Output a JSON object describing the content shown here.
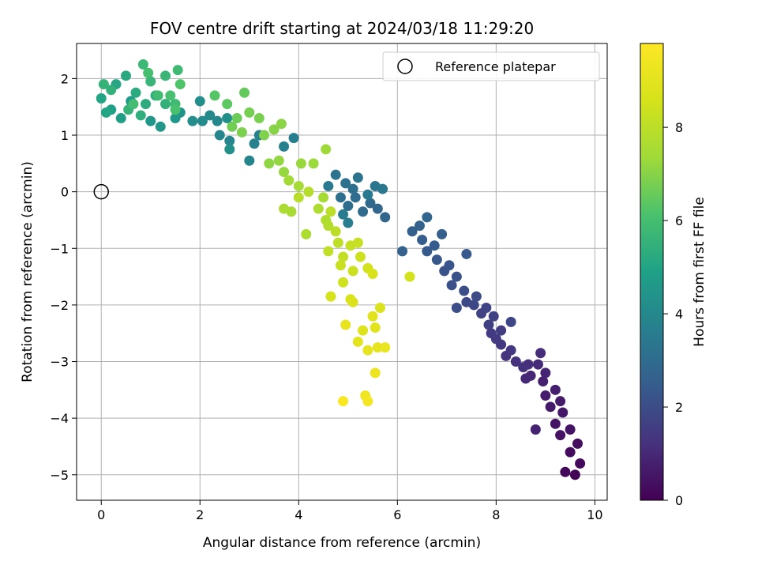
{
  "chart_data": {
    "type": "scatter",
    "title": "FOV centre drift starting at 2024/03/18 11:29:20",
    "xlabel": "Angular distance from reference (arcmin)",
    "ylabel": "Rotation from reference (arcmin)",
    "xlim": [
      -0.5,
      10.25
    ],
    "ylim": [
      -5.45,
      2.62
    ],
    "xticks": [
      0,
      2,
      4,
      6,
      8,
      10
    ],
    "yticks": [
      -5,
      -4,
      -3,
      -2,
      -1,
      0,
      1,
      2
    ],
    "grid": true,
    "legend": {
      "position": "top-right",
      "entries": [
        "Reference platepar"
      ]
    },
    "reference_point": {
      "name": "Reference platepar",
      "x": 0,
      "y": 0,
      "marker": "open-circle"
    },
    "colorbar": {
      "label": "Hours from first FF file",
      "range": [
        0,
        9.8
      ],
      "ticks": [
        0,
        2,
        4,
        6,
        8
      ],
      "colormap": "viridis"
    },
    "series": [
      {
        "color_by": "hours",
        "points": [
          {
            "x": 9.6,
            "y": -5.0,
            "h": 0.1
          },
          {
            "x": 9.4,
            "y": -4.95,
            "h": 0.15
          },
          {
            "x": 9.7,
            "y": -4.8,
            "h": 0.2
          },
          {
            "x": 9.5,
            "y": -4.6,
            "h": 0.25
          },
          {
            "x": 9.65,
            "y": -4.45,
            "h": 0.3
          },
          {
            "x": 9.3,
            "y": -4.3,
            "h": 0.4
          },
          {
            "x": 9.5,
            "y": -4.2,
            "h": 0.45
          },
          {
            "x": 9.2,
            "y": -4.1,
            "h": 0.5
          },
          {
            "x": 9.35,
            "y": -3.9,
            "h": 0.55
          },
          {
            "x": 9.1,
            "y": -3.8,
            "h": 0.6
          },
          {
            "x": 9.3,
            "y": -3.7,
            "h": 0.65
          },
          {
            "x": 9.0,
            "y": -3.6,
            "h": 0.7
          },
          {
            "x": 9.2,
            "y": -3.5,
            "h": 0.75
          },
          {
            "x": 8.95,
            "y": -3.35,
            "h": 0.8
          },
          {
            "x": 8.8,
            "y": -4.2,
            "h": 0.85
          },
          {
            "x": 9.0,
            "y": -3.2,
            "h": 0.9
          },
          {
            "x": 8.7,
            "y": -3.25,
            "h": 0.95
          },
          {
            "x": 8.6,
            "y": -3.3,
            "h": 1.0
          },
          {
            "x": 8.85,
            "y": -3.05,
            "h": 1.05
          },
          {
            "x": 8.9,
            "y": -2.85,
            "h": 1.1
          },
          {
            "x": 8.65,
            "y": -3.05,
            "h": 1.15
          },
          {
            "x": 8.55,
            "y": -3.1,
            "h": 1.2
          },
          {
            "x": 8.4,
            "y": -3.0,
            "h": 1.25
          },
          {
            "x": 8.2,
            "y": -2.9,
            "h": 1.3
          },
          {
            "x": 8.3,
            "y": -2.8,
            "h": 1.35
          },
          {
            "x": 8.1,
            "y": -2.7,
            "h": 1.4
          },
          {
            "x": 8.0,
            "y": -2.6,
            "h": 1.45
          },
          {
            "x": 7.9,
            "y": -2.5,
            "h": 1.5
          },
          {
            "x": 8.1,
            "y": -2.45,
            "h": 1.55
          },
          {
            "x": 7.85,
            "y": -2.35,
            "h": 1.6
          },
          {
            "x": 7.95,
            "y": -2.2,
            "h": 1.65
          },
          {
            "x": 7.7,
            "y": -2.15,
            "h": 1.7
          },
          {
            "x": 7.8,
            "y": -2.05,
            "h": 1.75
          },
          {
            "x": 8.3,
            "y": -2.3,
            "h": 1.8
          },
          {
            "x": 7.55,
            "y": -2.0,
            "h": 1.85
          },
          {
            "x": 7.4,
            "y": -1.95,
            "h": 1.9
          },
          {
            "x": 7.6,
            "y": -1.85,
            "h": 1.95
          },
          {
            "x": 7.2,
            "y": -2.05,
            "h": 2.0
          },
          {
            "x": 7.35,
            "y": -1.75,
            "h": 2.05
          },
          {
            "x": 7.1,
            "y": -1.65,
            "h": 2.1
          },
          {
            "x": 7.2,
            "y": -1.5,
            "h": 2.15
          },
          {
            "x": 6.95,
            "y": -1.4,
            "h": 2.2
          },
          {
            "x": 7.05,
            "y": -1.3,
            "h": 2.25
          },
          {
            "x": 6.8,
            "y": -1.2,
            "h": 2.3
          },
          {
            "x": 7.4,
            "y": -1.1,
            "h": 2.35
          },
          {
            "x": 6.6,
            "y": -1.05,
            "h": 2.4
          },
          {
            "x": 6.75,
            "y": -0.95,
            "h": 2.45
          },
          {
            "x": 6.5,
            "y": -0.85,
            "h": 2.5
          },
          {
            "x": 6.9,
            "y": -0.75,
            "h": 2.55
          },
          {
            "x": 6.3,
            "y": -0.7,
            "h": 2.6
          },
          {
            "x": 6.1,
            "y": -1.05,
            "h": 2.65
          },
          {
            "x": 6.45,
            "y": -0.6,
            "h": 2.7
          },
          {
            "x": 6.6,
            "y": -0.45,
            "h": 2.75
          },
          {
            "x": 5.75,
            "y": -0.45,
            "h": 2.8
          },
          {
            "x": 5.6,
            "y": -0.3,
            "h": 2.85
          },
          {
            "x": 5.45,
            "y": -0.2,
            "h": 2.9
          },
          {
            "x": 5.3,
            "y": -0.35,
            "h": 2.95
          },
          {
            "x": 5.15,
            "y": -0.1,
            "h": 3.0
          },
          {
            "x": 5.0,
            "y": -0.25,
            "h": 3.05
          },
          {
            "x": 4.85,
            "y": -0.1,
            "h": 3.1
          },
          {
            "x": 5.1,
            "y": 0.05,
            "h": 3.15
          },
          {
            "x": 4.95,
            "y": 0.15,
            "h": 3.2
          },
          {
            "x": 5.2,
            "y": 0.25,
            "h": 3.25
          },
          {
            "x": 4.75,
            "y": 0.3,
            "h": 3.3
          },
          {
            "x": 5.55,
            "y": 0.1,
            "h": 3.35
          },
          {
            "x": 5.7,
            "y": 0.05,
            "h": 3.4
          },
          {
            "x": 4.6,
            "y": 0.1,
            "h": 3.45
          },
          {
            "x": 5.4,
            "y": -0.05,
            "h": 3.5
          },
          {
            "x": 4.9,
            "y": -0.4,
            "h": 3.55
          },
          {
            "x": 5.0,
            "y": -0.55,
            "h": 3.6
          },
          {
            "x": 3.9,
            "y": 0.95,
            "h": 3.65
          },
          {
            "x": 3.7,
            "y": 0.8,
            "h": 3.7
          },
          {
            "x": 3.2,
            "y": 1.0,
            "h": 3.75
          },
          {
            "x": 3.1,
            "y": 0.85,
            "h": 3.8
          },
          {
            "x": 3.0,
            "y": 0.55,
            "h": 3.85
          },
          {
            "x": 2.6,
            "y": 0.9,
            "h": 3.9
          },
          {
            "x": 2.4,
            "y": 1.0,
            "h": 3.95
          },
          {
            "x": 2.35,
            "y": 1.25,
            "h": 4.0
          },
          {
            "x": 2.2,
            "y": 1.35,
            "h": 4.05
          },
          {
            "x": 2.05,
            "y": 1.25,
            "h": 4.1
          },
          {
            "x": 1.85,
            "y": 1.25,
            "h": 4.15
          },
          {
            "x": 2.0,
            "y": 1.6,
            "h": 4.2
          },
          {
            "x": 2.55,
            "y": 1.3,
            "h": 4.25
          },
          {
            "x": 2.6,
            "y": 0.75,
            "h": 4.3
          },
          {
            "x": 1.6,
            "y": 1.4,
            "h": 4.4
          },
          {
            "x": 1.2,
            "y": 1.15,
            "h": 4.5
          },
          {
            "x": 1.0,
            "y": 1.25,
            "h": 4.55
          },
          {
            "x": 1.5,
            "y": 1.3,
            "h": 4.6
          },
          {
            "x": 0.6,
            "y": 1.6,
            "h": 4.7
          },
          {
            "x": 0.4,
            "y": 1.3,
            "h": 4.8
          },
          {
            "x": 0.2,
            "y": 1.45,
            "h": 4.9
          },
          {
            "x": 0.0,
            "y": 1.65,
            "h": 5.0
          },
          {
            "x": 0.1,
            "y": 1.4,
            "h": 5.05
          },
          {
            "x": 0.3,
            "y": 1.9,
            "h": 5.1
          },
          {
            "x": 0.5,
            "y": 2.05,
            "h": 5.2
          },
          {
            "x": 0.7,
            "y": 1.75,
            "h": 5.25
          },
          {
            "x": 0.9,
            "y": 1.55,
            "h": 5.3
          },
          {
            "x": 1.1,
            "y": 1.7,
            "h": 5.35
          },
          {
            "x": 0.8,
            "y": 1.35,
            "h": 5.4
          },
          {
            "x": 1.3,
            "y": 1.55,
            "h": 5.45
          },
          {
            "x": 0.2,
            "y": 1.8,
            "h": 5.5
          },
          {
            "x": 0.05,
            "y": 1.9,
            "h": 5.55
          },
          {
            "x": 0.55,
            "y": 1.45,
            "h": 5.6
          },
          {
            "x": 1.0,
            "y": 1.95,
            "h": 5.65
          },
          {
            "x": 1.3,
            "y": 2.05,
            "h": 5.7
          },
          {
            "x": 0.85,
            "y": 2.25,
            "h": 5.75
          },
          {
            "x": 1.5,
            "y": 1.55,
            "h": 5.8
          },
          {
            "x": 1.55,
            "y": 2.15,
            "h": 5.85
          },
          {
            "x": 1.15,
            "y": 1.7,
            "h": 5.9
          },
          {
            "x": 0.65,
            "y": 1.55,
            "h": 5.95
          },
          {
            "x": 0.95,
            "y": 2.1,
            "h": 6.0
          },
          {
            "x": 1.4,
            "y": 1.7,
            "h": 6.05
          },
          {
            "x": 1.5,
            "y": 1.45,
            "h": 6.1
          },
          {
            "x": 1.6,
            "y": 1.9,
            "h": 6.2
          },
          {
            "x": 2.3,
            "y": 1.7,
            "h": 6.3
          },
          {
            "x": 2.55,
            "y": 1.55,
            "h": 6.4
          },
          {
            "x": 2.9,
            "y": 1.75,
            "h": 6.5
          },
          {
            "x": 2.75,
            "y": 1.3,
            "h": 6.6
          },
          {
            "x": 2.65,
            "y": 1.15,
            "h": 6.7
          },
          {
            "x": 3.0,
            "y": 1.4,
            "h": 6.75
          },
          {
            "x": 3.2,
            "y": 1.3,
            "h": 6.8
          },
          {
            "x": 2.85,
            "y": 1.05,
            "h": 6.85
          },
          {
            "x": 3.3,
            "y": 1.0,
            "h": 6.9
          },
          {
            "x": 3.5,
            "y": 1.1,
            "h": 7.0
          },
          {
            "x": 3.65,
            "y": 1.2,
            "h": 7.05
          },
          {
            "x": 3.4,
            "y": 0.5,
            "h": 7.1
          },
          {
            "x": 3.6,
            "y": 0.55,
            "h": 7.15
          },
          {
            "x": 3.7,
            "y": 0.35,
            "h": 7.2
          },
          {
            "x": 4.05,
            "y": 0.5,
            "h": 7.25
          },
          {
            "x": 4.3,
            "y": 0.5,
            "h": 7.3
          },
          {
            "x": 4.55,
            "y": 0.75,
            "h": 7.35
          },
          {
            "x": 3.8,
            "y": 0.2,
            "h": 7.4
          },
          {
            "x": 4.0,
            "y": 0.1,
            "h": 7.45
          },
          {
            "x": 4.5,
            "y": -0.1,
            "h": 7.5
          },
          {
            "x": 3.85,
            "y": -0.35,
            "h": 7.55
          },
          {
            "x": 3.7,
            "y": -0.3,
            "h": 7.6
          },
          {
            "x": 4.15,
            "y": -0.75,
            "h": 7.65
          },
          {
            "x": 4.4,
            "y": -0.3,
            "h": 7.7
          },
          {
            "x": 4.55,
            "y": -0.5,
            "h": 7.75
          },
          {
            "x": 4.6,
            "y": -0.6,
            "h": 7.8
          },
          {
            "x": 4.2,
            "y": 0.0,
            "h": 7.85
          },
          {
            "x": 4.0,
            "y": -0.1,
            "h": 7.9
          },
          {
            "x": 4.65,
            "y": -0.35,
            "h": 7.95
          },
          {
            "x": 4.75,
            "y": -0.7,
            "h": 8.0
          },
          {
            "x": 4.8,
            "y": -0.9,
            "h": 8.05
          },
          {
            "x": 4.6,
            "y": -1.05,
            "h": 8.1
          },
          {
            "x": 4.9,
            "y": -1.15,
            "h": 8.15
          },
          {
            "x": 5.05,
            "y": -0.95,
            "h": 8.2
          },
          {
            "x": 5.2,
            "y": -0.9,
            "h": 8.25
          },
          {
            "x": 4.85,
            "y": -1.3,
            "h": 8.3
          },
          {
            "x": 5.1,
            "y": -1.4,
            "h": 8.35
          },
          {
            "x": 5.25,
            "y": -1.15,
            "h": 8.4
          },
          {
            "x": 4.9,
            "y": -1.6,
            "h": 8.45
          },
          {
            "x": 5.4,
            "y": -1.35,
            "h": 8.5
          },
          {
            "x": 6.25,
            "y": -1.5,
            "h": 8.55
          },
          {
            "x": 4.65,
            "y": -1.85,
            "h": 8.6
          },
          {
            "x": 5.05,
            "y": -1.9,
            "h": 8.65
          },
          {
            "x": 5.5,
            "y": -1.45,
            "h": 8.7
          },
          {
            "x": 5.1,
            "y": -1.95,
            "h": 8.75
          },
          {
            "x": 5.65,
            "y": -2.05,
            "h": 8.8
          },
          {
            "x": 5.3,
            "y": -2.45,
            "h": 8.85
          },
          {
            "x": 5.5,
            "y": -2.2,
            "h": 8.9
          },
          {
            "x": 5.55,
            "y": -2.4,
            "h": 8.95
          },
          {
            "x": 5.2,
            "y": -2.65,
            "h": 9.0
          },
          {
            "x": 5.4,
            "y": -2.8,
            "h": 9.05
          },
          {
            "x": 5.6,
            "y": -2.75,
            "h": 9.1
          },
          {
            "x": 4.95,
            "y": -2.35,
            "h": 9.15
          },
          {
            "x": 5.75,
            "y": -2.75,
            "h": 9.2
          },
          {
            "x": 5.55,
            "y": -3.2,
            "h": 9.3
          },
          {
            "x": 5.35,
            "y": -3.6,
            "h": 9.4
          },
          {
            "x": 5.4,
            "y": -3.7,
            "h": 9.5
          },
          {
            "x": 4.9,
            "y": -3.7,
            "h": 9.7
          }
        ]
      }
    ]
  }
}
